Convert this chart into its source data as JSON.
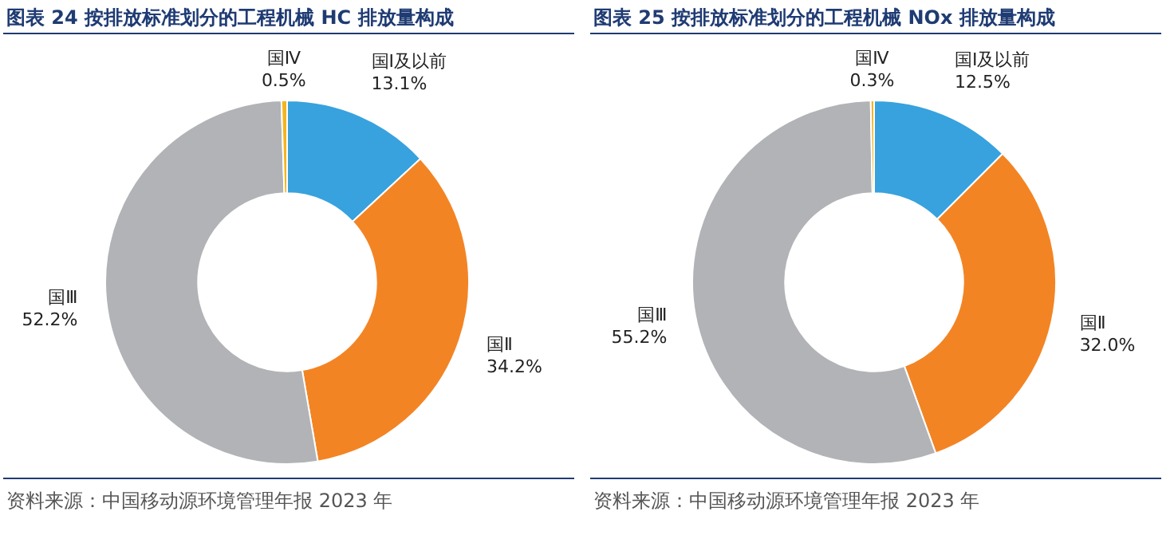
{
  "chart_data": [
    {
      "type": "donut",
      "title": "图表 24 按排放标准划分的工程机械 HC 排放量构成",
      "categories": [
        "国Ⅰ及以前",
        "国Ⅱ",
        "国Ⅲ",
        "国Ⅳ"
      ],
      "values": [
        13.1,
        34.2,
        52.2,
        0.5
      ],
      "value_labels": [
        "13.1%",
        "34.2%",
        "52.2%",
        "0.5%"
      ],
      "colors": [
        "#37a2de",
        "#f38424",
        "#b1b3b6",
        "#f5b41e"
      ],
      "annotations": [
        "资料来源：中国移动源环境管理年报 2023 年"
      ]
    },
    {
      "type": "donut",
      "title": "图表 25 按排放标准划分的工程机械 NOx 排放量构成",
      "categories": [
        "国Ⅰ及以前",
        "国Ⅱ",
        "国Ⅲ",
        "国Ⅳ"
      ],
      "values": [
        12.5,
        32.0,
        55.2,
        0.3
      ],
      "value_labels": [
        "12.5%",
        "32.0%",
        "55.2%",
        "0.3%"
      ],
      "colors": [
        "#37a2de",
        "#f38424",
        "#b1b3b6",
        "#f5b41e"
      ],
      "annotations": [
        "资料来源：中国移动源环境管理年报 2023 年"
      ]
    }
  ]
}
